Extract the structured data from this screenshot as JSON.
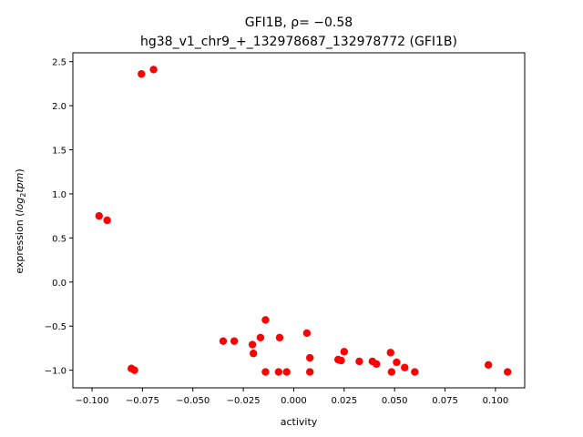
{
  "chart_data": {
    "type": "scatter",
    "title_line1": "GFI1B, ρ= −0.58",
    "title_line2": "hg38_v1_chr9_+_132978687_132978772 (GFI1B)",
    "xlabel": "activity",
    "ylabel_prefix": "expression (",
    "ylabel_math": "log",
    "ylabel_sub": "2",
    "ylabel_math2": "tpm",
    "ylabel_suffix": ")",
    "xlim": [
      -0.1095,
      0.1145
    ],
    "ylim": [
      -1.2,
      2.6
    ],
    "xticks": [
      {
        "value": -0.1,
        "label": "−0.100"
      },
      {
        "value": -0.075,
        "label": "−0.075"
      },
      {
        "value": -0.05,
        "label": "−0.050"
      },
      {
        "value": -0.025,
        "label": "−0.025"
      },
      {
        "value": 0.0,
        "label": "0.000"
      },
      {
        "value": 0.025,
        "label": "0.025"
      },
      {
        "value": 0.05,
        "label": "0.050"
      },
      {
        "value": 0.075,
        "label": "0.075"
      },
      {
        "value": 0.1,
        "label": "0.100"
      }
    ],
    "yticks": [
      {
        "value": -1.0,
        "label": "−1.0"
      },
      {
        "value": -0.5,
        "label": "−0.5"
      },
      {
        "value": 0.0,
        "label": "0.0"
      },
      {
        "value": 0.5,
        "label": "0.5"
      },
      {
        "value": 1.0,
        "label": "1.0"
      },
      {
        "value": 1.5,
        "label": "1.5"
      },
      {
        "value": 2.0,
        "label": "2.0"
      },
      {
        "value": 2.5,
        "label": "2.5"
      }
    ],
    "grid": false,
    "marker_color": "#ff0000",
    "points": [
      {
        "x": -0.0755,
        "y": 2.36
      },
      {
        "x": -0.0695,
        "y": 2.41
      },
      {
        "x": -0.0965,
        "y": 0.75
      },
      {
        "x": -0.0925,
        "y": 0.7
      },
      {
        "x": -0.0805,
        "y": -0.98
      },
      {
        "x": -0.079,
        "y": -1.0
      },
      {
        "x": -0.035,
        "y": -0.67
      },
      {
        "x": -0.0295,
        "y": -0.67
      },
      {
        "x": -0.0205,
        "y": -0.71
      },
      {
        "x": -0.02,
        "y": -0.81
      },
      {
        "x": -0.0165,
        "y": -0.63
      },
      {
        "x": -0.014,
        "y": -0.43
      },
      {
        "x": -0.014,
        "y": -1.02
      },
      {
        "x": -0.0075,
        "y": -1.02
      },
      {
        "x": -0.007,
        "y": -0.63
      },
      {
        "x": -0.0035,
        "y": -1.02
      },
      {
        "x": 0.0065,
        "y": -0.58
      },
      {
        "x": 0.008,
        "y": -0.86
      },
      {
        "x": 0.008,
        "y": -1.02
      },
      {
        "x": 0.022,
        "y": -0.88
      },
      {
        "x": 0.0235,
        "y": -0.89
      },
      {
        "x": 0.025,
        "y": -0.79
      },
      {
        "x": 0.0325,
        "y": -0.9
      },
      {
        "x": 0.039,
        "y": -0.9
      },
      {
        "x": 0.041,
        "y": -0.93
      },
      {
        "x": 0.048,
        "y": -0.8
      },
      {
        "x": 0.0485,
        "y": -1.02
      },
      {
        "x": 0.051,
        "y": -0.91
      },
      {
        "x": 0.055,
        "y": -0.97
      },
      {
        "x": 0.06,
        "y": -1.02
      },
      {
        "x": 0.0965,
        "y": -0.94
      },
      {
        "x": 0.106,
        "y": -1.02
      }
    ]
  }
}
